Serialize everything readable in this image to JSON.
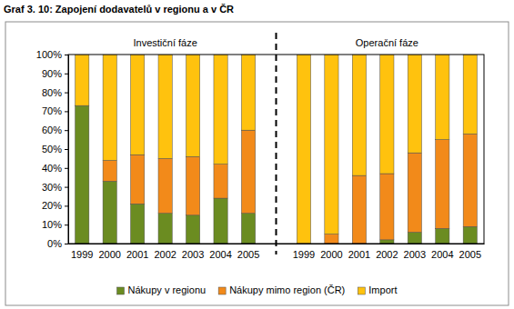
{
  "chart_data": {
    "type": "bar",
    "stacked": true,
    "title": "Graf 3. 10: Zapojení dodavatelů v regionu a v ČR",
    "annotations": [
      "Investiční fáze",
      "Operační fáze"
    ],
    "categories": [
      "1999",
      "2000",
      "2001",
      "2002",
      "2003",
      "2004",
      "2005",
      null,
      "1999",
      "2000",
      "2001",
      "2002",
      "2003",
      "2004",
      "2005"
    ],
    "series": [
      {
        "name": "Nákupy v regionu",
        "color": "#6b8c21",
        "values": [
          73,
          33,
          21,
          16,
          15,
          24,
          16,
          null,
          0,
          0,
          0,
          2,
          6,
          8,
          9
        ]
      },
      {
        "name": "Nákupy mimo region (ČR)",
        "color": "#f28a1a",
        "values": [
          0,
          11,
          26,
          29,
          31,
          18,
          44,
          null,
          0,
          5,
          36,
          35,
          42,
          47,
          49
        ]
      },
      {
        "name": "Import",
        "color": "#ffc20e",
        "values": [
          27,
          56,
          53,
          55,
          54,
          58,
          40,
          null,
          100,
          95,
          64,
          63,
          52,
          45,
          42
        ]
      }
    ],
    "ylim": [
      0,
      100
    ],
    "yticks": [
      {
        "value": 0,
        "label": "0%"
      },
      {
        "value": 10,
        "label": "10%"
      },
      {
        "value": 20,
        "label": "20%"
      },
      {
        "value": 30,
        "label": "30%"
      },
      {
        "value": 40,
        "label": "40%"
      },
      {
        "value": 50,
        "label": "50%"
      },
      {
        "value": 60,
        "label": "60%"
      },
      {
        "value": 70,
        "label": "70%"
      },
      {
        "value": 80,
        "label": "80%"
      },
      {
        "value": 90,
        "label": "90%"
      },
      {
        "value": 100,
        "label": "100%"
      }
    ],
    "grid": false,
    "legend": "bottom"
  }
}
